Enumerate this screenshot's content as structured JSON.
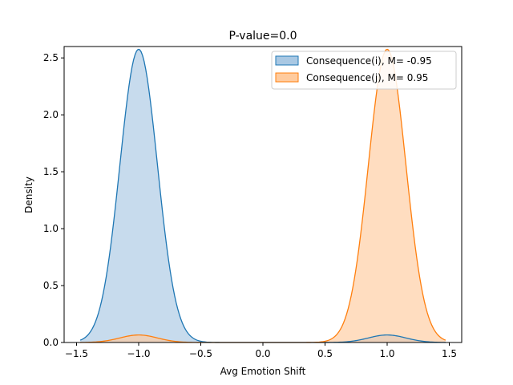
{
  "chart_data": {
    "type": "area",
    "title": "P-value=0.0",
    "xlabel": "Avg Emotion Shift",
    "ylabel": "Density",
    "xlim": [
      -1.6,
      1.6
    ],
    "ylim": [
      0,
      2.6
    ],
    "xticks": [
      -1.5,
      -1.0,
      -0.5,
      0.0,
      0.5,
      1.0,
      1.5
    ],
    "xtick_labels": [
      "−1.5",
      "−1.0",
      "−0.5",
      "0.0",
      "0.5",
      "1.0",
      "1.5"
    ],
    "yticks": [
      0.0,
      0.5,
      1.0,
      1.5,
      2.0,
      2.5
    ],
    "ytick_labels": [
      "0.0",
      "0.5",
      "1.0",
      "1.5",
      "2.0",
      "2.5"
    ],
    "grid": false,
    "legend_placement": "upper right",
    "series": [
      {
        "name": "Consequence(i), M= -0.95",
        "line_color": "#1f77b4",
        "fill_color": "#a9c8e3",
        "x_range": [
          -1.47,
          1.47
        ],
        "components": [
          {
            "mu": -1.0,
            "sigma": 0.151,
            "weight": 0.975
          },
          {
            "mu": 1.0,
            "sigma": 0.151,
            "weight": 0.025
          }
        ]
      },
      {
        "name": "Consequence(j), M= 0.95",
        "line_color": "#ff7f0e",
        "fill_color": "#ffcb9e",
        "x_range": [
          -1.47,
          1.47
        ],
        "components": [
          {
            "mu": 1.0,
            "sigma": 0.151,
            "weight": 0.975
          },
          {
            "mu": -1.0,
            "sigma": 0.151,
            "weight": 0.025
          }
        ]
      }
    ]
  }
}
